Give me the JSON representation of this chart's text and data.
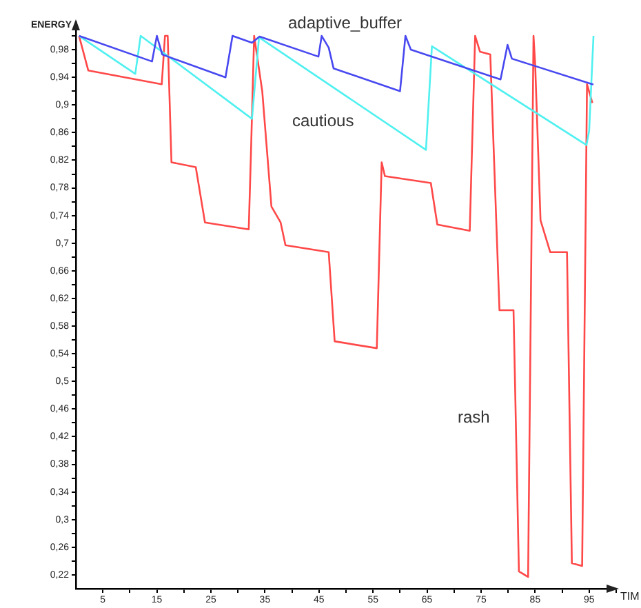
{
  "chart_data": {
    "type": "line",
    "xlabel": "TIM",
    "ylabel": "ENERGY",
    "xlim": [
      0,
      100
    ],
    "ylim": [
      0.2,
      1.02
    ],
    "xticks": [
      {
        "value": 5,
        "label": "5"
      },
      {
        "value": 10,
        "label": null
      },
      {
        "value": 15,
        "label": "15"
      },
      {
        "value": 20,
        "label": null
      },
      {
        "value": 25,
        "label": "25"
      },
      {
        "value": 30,
        "label": null
      },
      {
        "value": 35,
        "label": "35"
      },
      {
        "value": 40,
        "label": null
      },
      {
        "value": 45,
        "label": "45"
      },
      {
        "value": 50,
        "label": null
      },
      {
        "value": 55,
        "label": "55"
      },
      {
        "value": 60,
        "label": null
      },
      {
        "value": 65,
        "label": "65"
      },
      {
        "value": 70,
        "label": null
      },
      {
        "value": 75,
        "label": "75"
      },
      {
        "value": 80,
        "label": null
      },
      {
        "value": 85,
        "label": "85"
      },
      {
        "value": 90,
        "label": null
      },
      {
        "value": 95,
        "label": "95"
      },
      {
        "value": 100,
        "label": null
      }
    ],
    "yticks": [
      {
        "value": 0.22,
        "label": "0,22"
      },
      {
        "value": 0.24,
        "label": null
      },
      {
        "value": 0.26,
        "label": "0,26"
      },
      {
        "value": 0.28,
        "label": null
      },
      {
        "value": 0.3,
        "label": "0,3"
      },
      {
        "value": 0.32,
        "label": null
      },
      {
        "value": 0.34,
        "label": "0,34"
      },
      {
        "value": 0.36,
        "label": null
      },
      {
        "value": 0.38,
        "label": "0,38"
      },
      {
        "value": 0.4,
        "label": null
      },
      {
        "value": 0.42,
        "label": "0,42"
      },
      {
        "value": 0.44,
        "label": null
      },
      {
        "value": 0.46,
        "label": "0,46"
      },
      {
        "value": 0.48,
        "label": null
      },
      {
        "value": 0.5,
        "label": "0,5"
      },
      {
        "value": 0.52,
        "label": null
      },
      {
        "value": 0.54,
        "label": "0,54"
      },
      {
        "value": 0.56,
        "label": null
      },
      {
        "value": 0.58,
        "label": "0,58"
      },
      {
        "value": 0.6,
        "label": null
      },
      {
        "value": 0.62,
        "label": "0,62"
      },
      {
        "value": 0.64,
        "label": null
      },
      {
        "value": 0.66,
        "label": "0,66"
      },
      {
        "value": 0.68,
        "label": null
      },
      {
        "value": 0.7,
        "label": "0,7"
      },
      {
        "value": 0.72,
        "label": null
      },
      {
        "value": 0.74,
        "label": "0,74"
      },
      {
        "value": 0.76,
        "label": null
      },
      {
        "value": 0.78,
        "label": "0,78"
      },
      {
        "value": 0.8,
        "label": null
      },
      {
        "value": 0.82,
        "label": "0,82"
      },
      {
        "value": 0.84,
        "label": null
      },
      {
        "value": 0.86,
        "label": "0,86"
      },
      {
        "value": 0.88,
        "label": null
      },
      {
        "value": 0.9,
        "label": "0,9"
      },
      {
        "value": 0.92,
        "label": null
      },
      {
        "value": 0.94,
        "label": "0,94"
      },
      {
        "value": 0.96,
        "label": null
      },
      {
        "value": 0.98,
        "label": "0,98"
      },
      {
        "value": 1.0,
        "label": null
      }
    ],
    "grid": false,
    "legend": false,
    "marker": "none",
    "line_style": "solid",
    "series": [
      {
        "name": "adaptive_buffer",
        "color": "#4848f0",
        "x": [
          0.6,
          14.1,
          15,
          16,
          27.7,
          29,
          32.6,
          34,
          44.9,
          45.5,
          46.8,
          47.7,
          60,
          61,
          62,
          78.6,
          79.9,
          80.7,
          95.6,
          95.8
        ],
        "values": [
          1.0,
          0.963,
          1.0,
          0.973,
          0.94,
          1.0,
          0.99,
          0.999,
          0.97,
          1.0,
          0.983,
          0.953,
          0.92,
          1.0,
          0.98,
          0.937,
          0.987,
          0.967,
          0.93,
          0.93
        ]
      },
      {
        "name": "cautious",
        "color": "#50f0f0",
        "x": [
          0.6,
          11,
          12,
          32.6,
          33.9,
          64.8,
          65.9,
          94.5,
          95,
          95.8
        ],
        "values": [
          1.0,
          0.945,
          1.0,
          0.88,
          0.998,
          0.835,
          0.985,
          0.842,
          0.863,
          1.0
        ]
      },
      {
        "name": "rash",
        "color": "#ff4848",
        "x": [
          0.6,
          2.3,
          15.9,
          16.5,
          17,
          17.7,
          22.2,
          23.9,
          32,
          32.4,
          33,
          34.5,
          36.2,
          37.9,
          38.8,
          46.8,
          47.9,
          55.7,
          56.6,
          57.2,
          65.7,
          66.9,
          72.9,
          73.9,
          74.8,
          76.7,
          78.4,
          81,
          82,
          83.7,
          84.7,
          85,
          86,
          87.8,
          90.9,
          91.8,
          93.7,
          94.6,
          95.6
        ],
        "values": [
          1.0,
          0.95,
          0.93,
          1.0,
          1.0,
          0.817,
          0.81,
          0.73,
          0.72,
          0.827,
          1.0,
          0.92,
          0.753,
          0.73,
          0.697,
          0.687,
          0.558,
          0.548,
          0.817,
          0.797,
          0.787,
          0.727,
          0.718,
          1.0,
          0.977,
          0.973,
          0.603,
          0.603,
          0.225,
          0.217,
          1.0,
          0.96,
          0.733,
          0.687,
          0.687,
          0.237,
          0.233,
          0.93,
          0.903
        ]
      }
    ]
  }
}
